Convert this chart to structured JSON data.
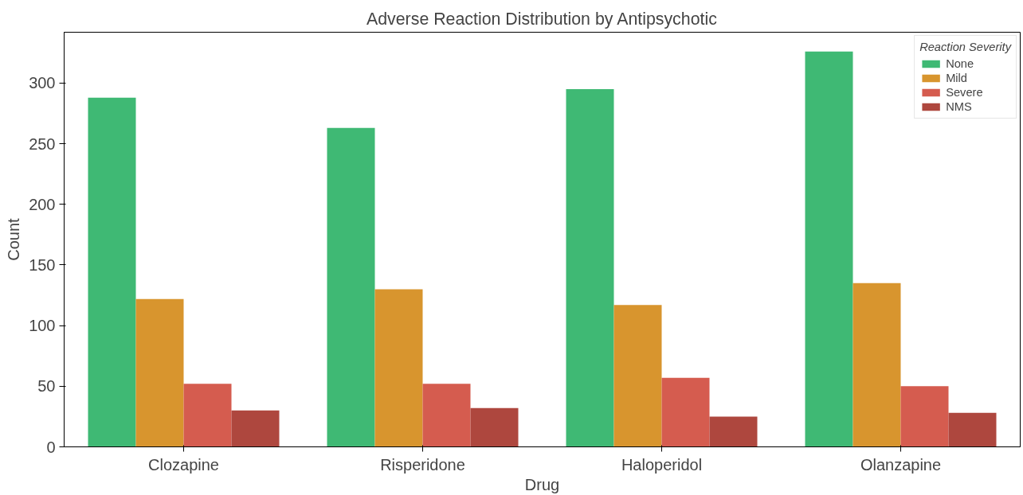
{
  "chart_data": {
    "type": "bar",
    "title": "Adverse Reaction Distribution by Antipsychotic",
    "xlabel": "Drug",
    "ylabel": "Count",
    "legend_title": "Reaction Severity",
    "categories": [
      "Clozapine",
      "Risperidone",
      "Haloperidol",
      "Olanzapine"
    ],
    "series": [
      {
        "name": "None",
        "color": "#3fb974",
        "values": [
          288,
          263,
          295,
          326
        ]
      },
      {
        "name": "Mild",
        "color": "#d8952e",
        "values": [
          122,
          130,
          117,
          135
        ]
      },
      {
        "name": "Severe",
        "color": "#d55c4f",
        "values": [
          52,
          52,
          57,
          50
        ]
      },
      {
        "name": "NMS",
        "color": "#ae473e",
        "values": [
          30,
          32,
          25,
          28
        ]
      }
    ],
    "ylim": [
      0,
      342
    ],
    "yticks": [
      0,
      50,
      100,
      150,
      200,
      250,
      300
    ],
    "grid": false,
    "legend": "top right"
  }
}
